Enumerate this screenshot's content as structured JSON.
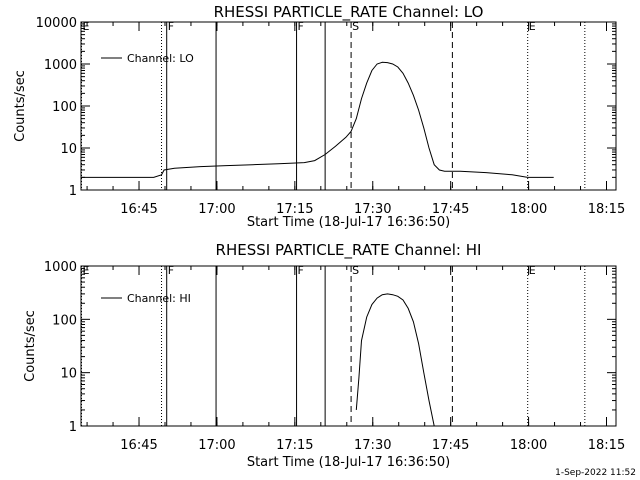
{
  "footer": {
    "date_stamp": "1-Sep-2022 11:52"
  },
  "chart_data": [
    {
      "type": "line",
      "title": "RHESSI PARTICLE_RATE Channel: LO",
      "xlabel": "Start Time (18-Jul-17 16:36:50)",
      "ylabel": "Counts/sec",
      "yscale": "log",
      "xlim_min": [
        -3,
        100
      ],
      "ylim": [
        1,
        10000
      ],
      "xticks": [
        {
          "min": 8.17,
          "label": "16:45"
        },
        {
          "min": 23.17,
          "label": "17:00"
        },
        {
          "min": 38.17,
          "label": "17:15"
        },
        {
          "min": 53.17,
          "label": "17:30"
        },
        {
          "min": 68.17,
          "label": "17:45"
        },
        {
          "min": 83.17,
          "label": "18:00"
        },
        {
          "min": 98.17,
          "label": "18:15"
        }
      ],
      "yticks": [
        {
          "v": 1,
          "label": "1"
        },
        {
          "v": 10,
          "label": "10"
        },
        {
          "v": 100,
          "label": "100"
        },
        {
          "v": 1000,
          "label": "1000"
        },
        {
          "v": 10000,
          "label": "10000"
        }
      ],
      "legend": {
        "label": "Channel: LO",
        "position": "top-left"
      },
      "markers": [
        {
          "t": -3.0,
          "style": "dotted",
          "label": "E"
        },
        {
          "t": 12.5,
          "style": "dotted",
          "label": ""
        },
        {
          "t": 13.5,
          "style": "solid",
          "label": "F"
        },
        {
          "t": 23.0,
          "style": "solid",
          "label": ""
        },
        {
          "t": 38.5,
          "style": "solid",
          "label": "F"
        },
        {
          "t": 44.0,
          "style": "solid",
          "label": ""
        },
        {
          "t": 49.0,
          "style": "dashed",
          "label": "S"
        },
        {
          "t": 68.5,
          "style": "dashed",
          "label": ""
        },
        {
          "t": 83.0,
          "style": "dotted",
          "label": "E"
        },
        {
          "t": 94.0,
          "style": "dotted",
          "label": ""
        }
      ],
      "series": [
        {
          "name": "Channel: LO",
          "x": [
            -3,
            3,
            6,
            11,
            12.5,
            13,
            15,
            20,
            25,
            30,
            35,
            40,
            42,
            44,
            46,
            48,
            49,
            50,
            51,
            52,
            53,
            54,
            55,
            56,
            57,
            58,
            59,
            60,
            61,
            62,
            63,
            64,
            65,
            66,
            67,
            68,
            69,
            70,
            75,
            80,
            83,
            86,
            88
          ],
          "y": [
            2,
            2,
            2,
            2,
            2.3,
            3,
            3.3,
            3.6,
            3.8,
            4,
            4.2,
            4.5,
            5,
            7,
            11,
            18,
            25,
            50,
            150,
            350,
            700,
            1000,
            1100,
            1080,
            1000,
            850,
            600,
            350,
            180,
            80,
            30,
            10,
            4,
            3,
            2.8,
            2.8,
            2.8,
            2.8,
            2.6,
            2.3,
            2,
            2,
            2
          ]
        }
      ]
    },
    {
      "type": "line",
      "title": "RHESSI PARTICLE_RATE Channel: HI",
      "xlabel": "Start Time (18-Jul-17 16:36:50)",
      "ylabel": "Counts/sec",
      "yscale": "log",
      "xlim_min": [
        -3,
        100
      ],
      "ylim": [
        1,
        1000
      ],
      "xticks": [
        {
          "min": 8.17,
          "label": "16:45"
        },
        {
          "min": 23.17,
          "label": "17:00"
        },
        {
          "min": 38.17,
          "label": "17:15"
        },
        {
          "min": 53.17,
          "label": "17:30"
        },
        {
          "min": 68.17,
          "label": "17:45"
        },
        {
          "min": 83.17,
          "label": "18:00"
        },
        {
          "min": 98.17,
          "label": "18:15"
        }
      ],
      "yticks": [
        {
          "v": 1,
          "label": "1"
        },
        {
          "v": 10,
          "label": "10"
        },
        {
          "v": 100,
          "label": "100"
        },
        {
          "v": 1000,
          "label": "1000"
        }
      ],
      "legend": {
        "label": "Channel: HI",
        "position": "top-left"
      },
      "markers": [
        {
          "t": -3.0,
          "style": "dotted",
          "label": "E"
        },
        {
          "t": 12.5,
          "style": "dotted",
          "label": ""
        },
        {
          "t": 13.5,
          "style": "solid",
          "label": "F"
        },
        {
          "t": 23.0,
          "style": "solid",
          "label": ""
        },
        {
          "t": 38.5,
          "style": "solid",
          "label": "F"
        },
        {
          "t": 44.0,
          "style": "solid",
          "label": ""
        },
        {
          "t": 49.0,
          "style": "dashed",
          "label": "S"
        },
        {
          "t": 68.5,
          "style": "dashed",
          "label": ""
        },
        {
          "t": 83.0,
          "style": "dotted",
          "label": "E"
        },
        {
          "t": 94.0,
          "style": "dotted",
          "label": ""
        }
      ],
      "series": [
        {
          "name": "Channel: HI",
          "x": [
            50,
            50.5,
            51,
            52,
            53,
            54,
            55,
            56,
            57,
            58,
            59,
            60,
            61,
            62,
            63,
            64,
            65
          ],
          "y": [
            2,
            8,
            40,
            110,
            190,
            250,
            290,
            300,
            290,
            270,
            230,
            160,
            90,
            35,
            10,
            3,
            1
          ]
        }
      ]
    }
  ]
}
